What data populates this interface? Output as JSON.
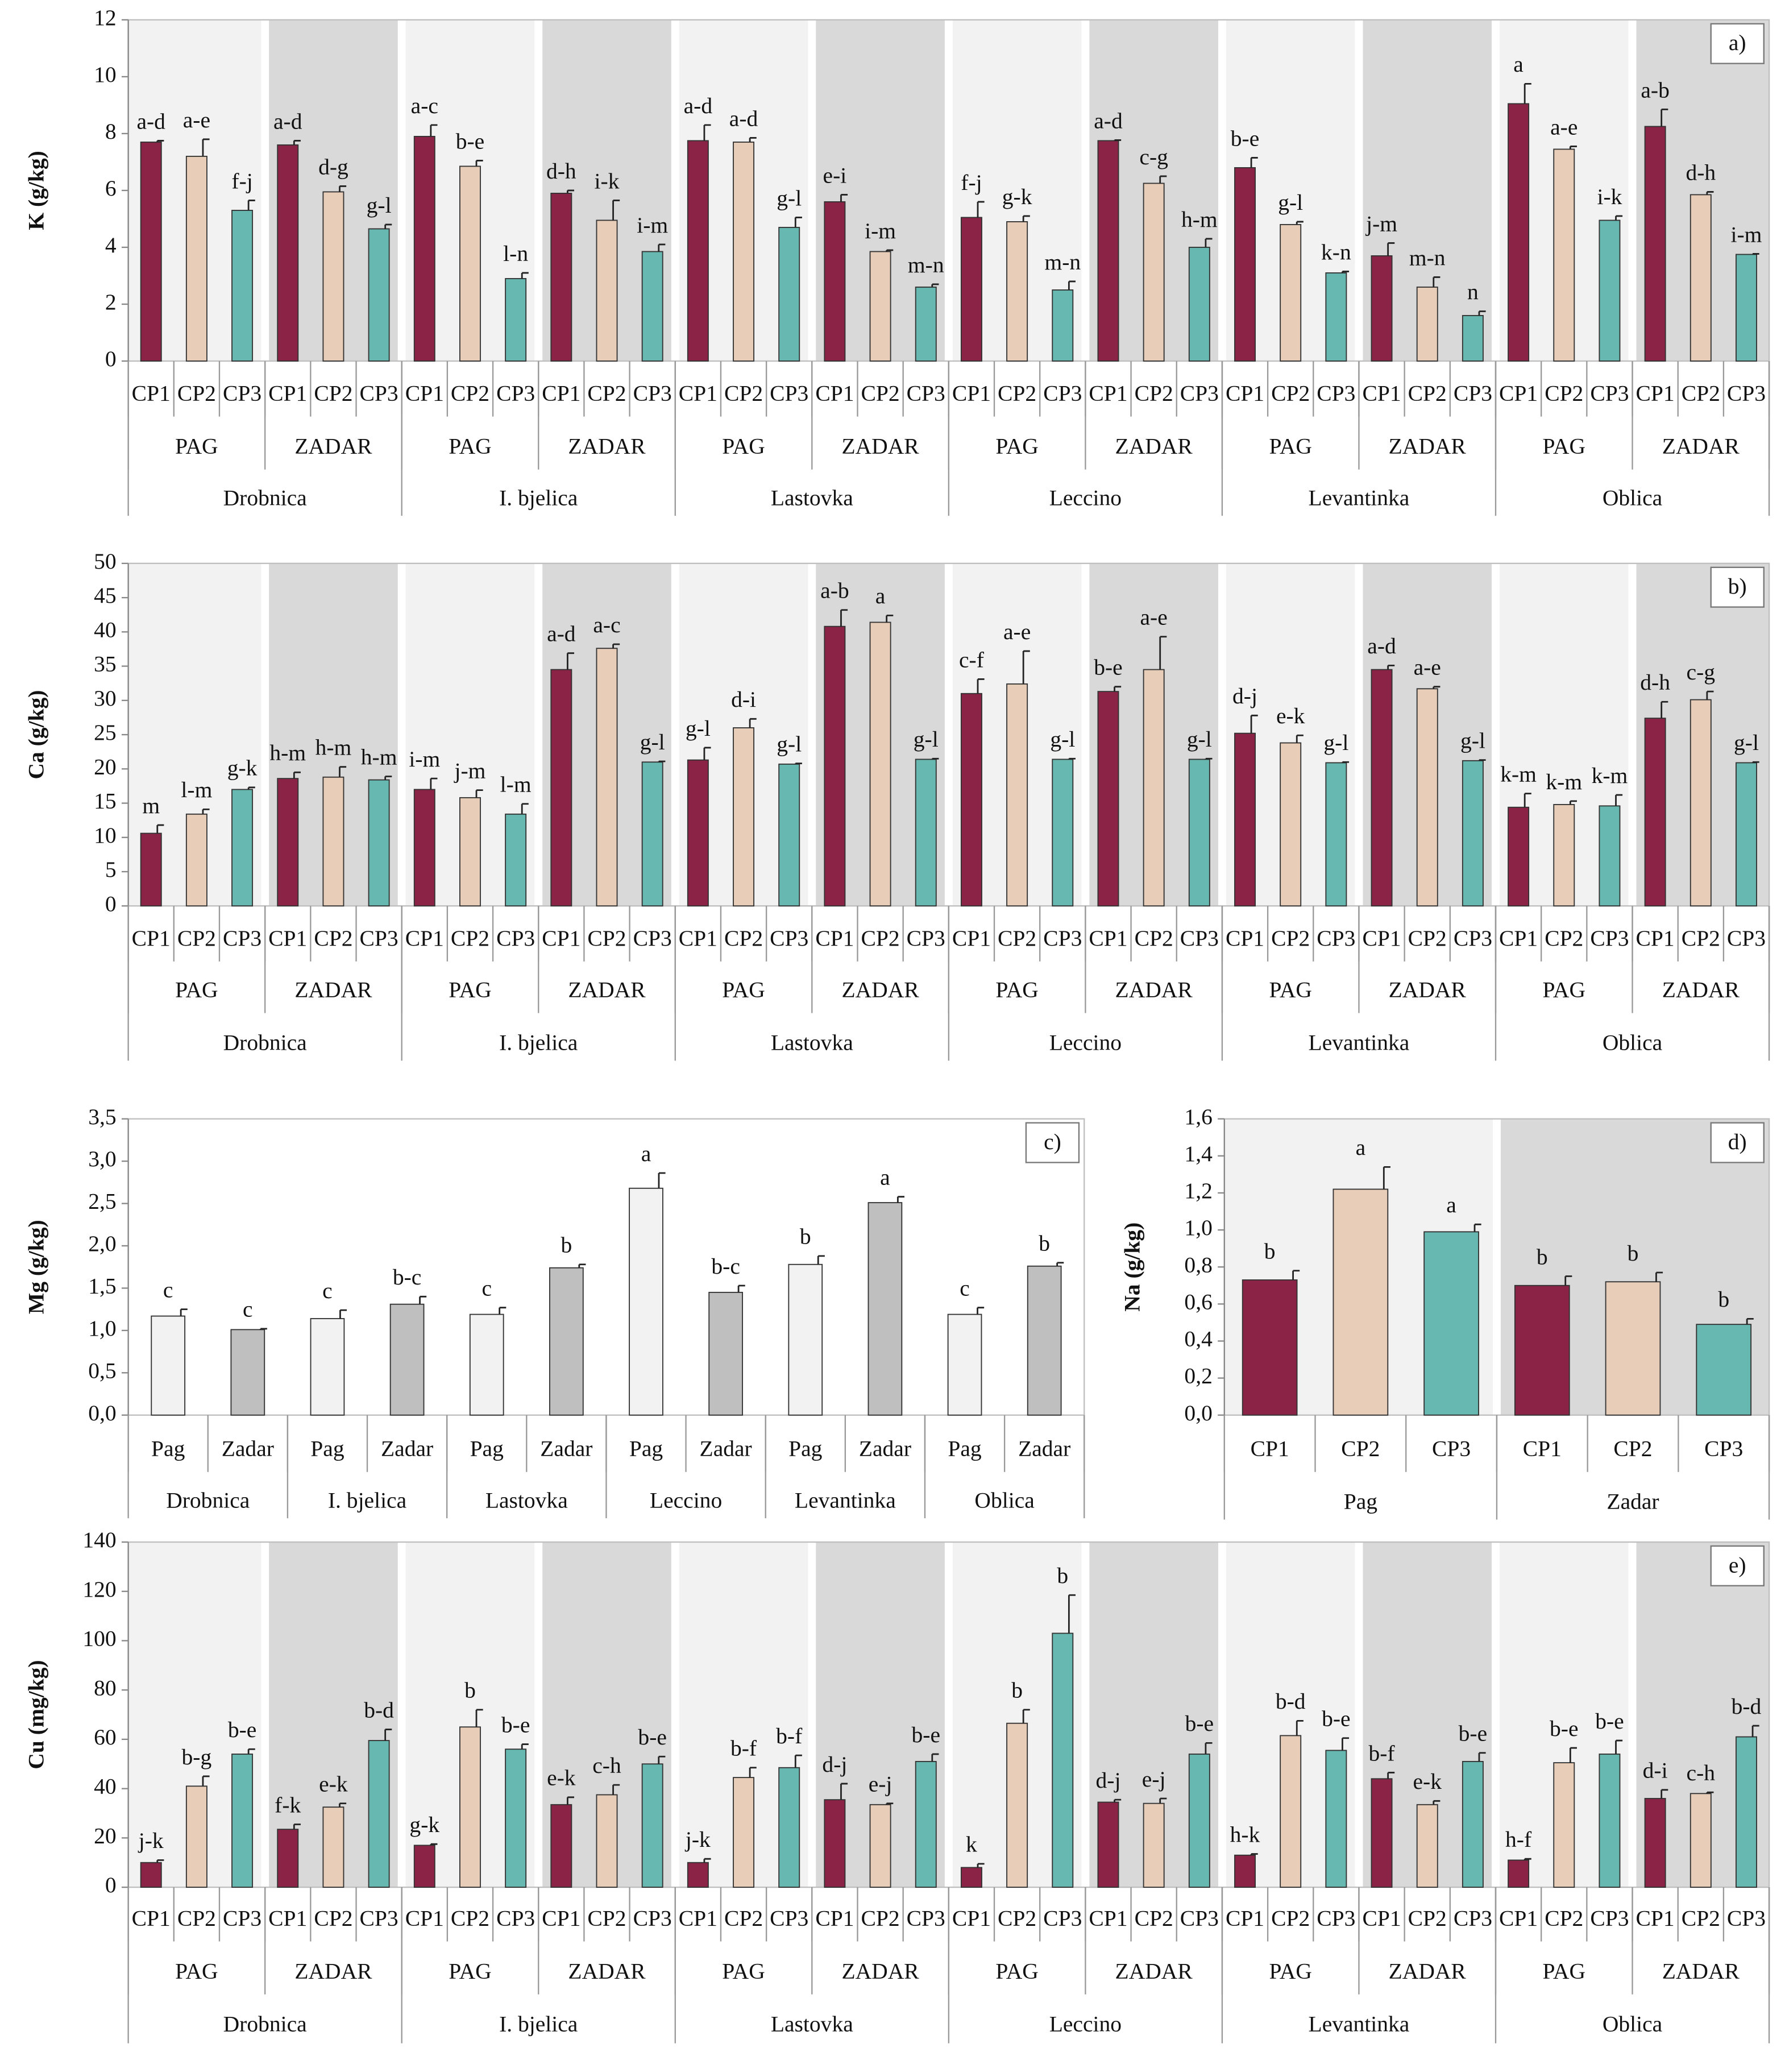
{
  "chart_data": [
    {
      "type": "bar",
      "label": "a)",
      "ylabel": "K (g/kg)",
      "ylim": [
        0,
        12
      ],
      "yticks": [
        0,
        2,
        4,
        6,
        8,
        10,
        12
      ],
      "colors": [
        "#8b2346",
        "#e8cdb8",
        "#66b8b0"
      ],
      "band_colors": [
        "#f2f2f2",
        "#d9d9d9"
      ],
      "categories": [
        "CP1",
        "CP2",
        "CP3",
        "CP1",
        "CP2",
        "CP3",
        "CP1",
        "CP2",
        "CP3",
        "CP1",
        "CP2",
        "CP3",
        "CP1",
        "CP2",
        "CP3",
        "CP1",
        "CP2",
        "CP3",
        "CP1",
        "CP2",
        "CP3",
        "CP1",
        "CP2",
        "CP3",
        "CP1",
        "CP2",
        "CP3",
        "CP1",
        "CP2",
        "CP3",
        "CP1",
        "CP2",
        "CP3",
        "CP1",
        "CP2",
        "CP3"
      ],
      "groups": [
        "PAG",
        "ZADAR",
        "PAG",
        "ZADAR",
        "PAG",
        "ZADAR",
        "PAG",
        "ZADAR",
        "PAG",
        "ZADAR",
        "PAG",
        "ZADAR"
      ],
      "supergroups": [
        "Drobnica",
        "I. bjelica",
        "Lastovka",
        "Leccino",
        "Levantinka",
        "Oblica"
      ],
      "values": [
        7.7,
        7.2,
        5.3,
        7.6,
        5.95,
        4.65,
        7.9,
        6.85,
        2.9,
        5.9,
        4.95,
        3.85,
        7.75,
        7.7,
        4.7,
        5.6,
        3.85,
        2.6,
        5.05,
        4.9,
        2.5,
        7.75,
        6.25,
        4.0,
        6.8,
        4.8,
        3.1,
        3.7,
        2.6,
        1.6,
        9.05,
        7.45,
        4.95,
        8.25,
        5.85,
        3.75
      ],
      "errors": [
        0.05,
        0.6,
        0.35,
        0.15,
        0.2,
        0.15,
        0.4,
        0.2,
        0.2,
        0.1,
        0.7,
        0.25,
        0.55,
        0.15,
        0.35,
        0.25,
        0.05,
        0.1,
        0.55,
        0.2,
        0.3,
        0.02,
        0.25,
        0.3,
        0.35,
        0.1,
        0.05,
        0.45,
        0.35,
        0.15,
        0.7,
        0.1,
        0.15,
        0.6,
        0.1,
        0.02
      ],
      "annotations": [
        "a-d",
        "a-e",
        "f-j",
        "a-d",
        "d-g",
        "g-l",
        "a-c",
        "b-e",
        "l-n",
        "d-h",
        "i-k",
        "i-m",
        "a-d",
        "a-d",
        "g-l",
        "e-i",
        "i-m",
        "m-n",
        "f-j",
        "g-k",
        "m-n",
        "a-d",
        "c-g",
        "h-m",
        "b-e",
        "g-l",
        "k-n",
        "j-m",
        "m-n",
        "n",
        "a",
        "a-e",
        "i-k",
        "a-b",
        "d-h",
        "i-m"
      ]
    },
    {
      "type": "bar",
      "label": "b)",
      "ylabel": "Ca (g/kg)",
      "ylim": [
        0,
        50
      ],
      "yticks": [
        0,
        5,
        10,
        15,
        20,
        25,
        30,
        35,
        40,
        45,
        50
      ],
      "colors": [
        "#8b2346",
        "#e8cdb8",
        "#66b8b0"
      ],
      "band_colors": [
        "#f2f2f2",
        "#d9d9d9"
      ],
      "categories": [
        "CP1",
        "CP2",
        "CP3",
        "CP1",
        "CP2",
        "CP3",
        "CP1",
        "CP2",
        "CP3",
        "CP1",
        "CP2",
        "CP3",
        "CP1",
        "CP2",
        "CP3",
        "CP1",
        "CP2",
        "CP3",
        "CP1",
        "CP2",
        "CP3",
        "CP1",
        "CP2",
        "CP3",
        "CP1",
        "CP2",
        "CP3",
        "CP1",
        "CP2",
        "CP3",
        "CP1",
        "CP2",
        "CP3",
        "CP1",
        "CP2",
        "CP3"
      ],
      "groups": [
        "PAG",
        "ZADAR",
        "PAG",
        "ZADAR",
        "PAG",
        "ZADAR",
        "PAG",
        "ZADAR",
        "PAG",
        "ZADAR",
        "PAG",
        "ZADAR"
      ],
      "supergroups": [
        "Drobnica",
        "I. bjelica",
        "Lastovka",
        "Leccino",
        "Levantinka",
        "Oblica"
      ],
      "values": [
        10.6,
        13.4,
        17.0,
        18.6,
        18.8,
        18.4,
        17.0,
        15.8,
        13.4,
        34.5,
        37.6,
        21.0,
        21.3,
        26.0,
        20.7,
        40.8,
        41.4,
        21.4,
        31.0,
        32.4,
        21.4,
        31.3,
        34.5,
        21.4,
        25.2,
        23.8,
        20.9,
        34.5,
        31.7,
        21.2,
        14.4,
        14.8,
        14.6,
        27.4,
        30.1,
        20.9
      ],
      "errors": [
        1.2,
        0.7,
        0.3,
        0.9,
        1.5,
        0.5,
        1.6,
        1.1,
        1.5,
        2.4,
        0.6,
        0.1,
        1.8,
        1.3,
        0.1,
        2.4,
        1.0,
        0.1,
        2.1,
        4.8,
        0.1,
        0.7,
        4.8,
        0.1,
        2.6,
        1.1,
        0.1,
        0.6,
        0.3,
        0.1,
        2.0,
        0.5,
        1.6,
        2.4,
        1.2,
        0.1
      ],
      "annotations": [
        "m",
        "l-m",
        "g-k",
        "h-m",
        "h-m",
        "h-m",
        "i-m",
        "j-m",
        "l-m",
        "a-d",
        "a-c",
        "g-l",
        "g-l",
        "d-i",
        "g-l",
        "a-b",
        "a",
        "g-l",
        "c-f",
        "a-e",
        "g-l",
        "b-e",
        "a-e",
        "g-l",
        "d-j",
        "e-k",
        "g-l",
        "a-d",
        "a-e",
        "g-l",
        "k-m",
        "k-m",
        "k-m",
        "d-h",
        "c-g",
        "g-l"
      ]
    },
    {
      "type": "bar",
      "label": "c)",
      "ylabel": "Mg (g/kg)",
      "ylim": [
        0,
        3.5
      ],
      "yticks": [
        {
          "value": 0,
          "label": "0,0"
        },
        {
          "value": 0.5,
          "label": "0,5"
        },
        {
          "value": 1,
          "label": "1,0"
        },
        {
          "value": 1.5,
          "label": "1,5"
        },
        {
          "value": 2,
          "label": "2,0"
        },
        {
          "value": 2.5,
          "label": "2,5"
        },
        {
          "value": 3,
          "label": "3,0"
        },
        {
          "value": 3.5,
          "label": "3,5"
        }
      ],
      "colors": [
        "#f2f2f2",
        "#bfbfbf"
      ],
      "categories": [
        "Pag",
        "Zadar",
        "Pag",
        "Zadar",
        "Pag",
        "Zadar",
        "Pag",
        "Zadar",
        "Pag",
        "Zadar",
        "Pag",
        "Zadar"
      ],
      "groups": [
        "Drobnica",
        "I. bjelica",
        "Lastovka",
        "Leccino",
        "Levantinka",
        "Oblica"
      ],
      "values": [
        1.17,
        1.01,
        1.14,
        1.31,
        1.19,
        1.74,
        2.68,
        1.45,
        1.78,
        2.51,
        1.19,
        1.76
      ],
      "errors": [
        0.08,
        0.01,
        0.1,
        0.09,
        0.08,
        0.04,
        0.18,
        0.08,
        0.1,
        0.07,
        0.08,
        0.04
      ],
      "annotations": [
        "c",
        "c",
        "c",
        "b-c",
        "c",
        "b",
        "a",
        "b-c",
        "b",
        "a",
        "c",
        "b"
      ]
    },
    {
      "type": "bar",
      "label": "d)",
      "ylabel": "Na (g/kg)",
      "ylim": [
        0,
        1.6
      ],
      "yticks": [
        {
          "value": 0,
          "label": "0,0"
        },
        {
          "value": 0.2,
          "label": "0,2"
        },
        {
          "value": 0.4,
          "label": "0,4"
        },
        {
          "value": 0.6,
          "label": "0,6"
        },
        {
          "value": 0.8,
          "label": "0,8"
        },
        {
          "value": 1,
          "label": "1,0"
        },
        {
          "value": 1.2,
          "label": "1,2"
        },
        {
          "value": 1.4,
          "label": "1,4"
        },
        {
          "value": 1.6,
          "label": "1,6"
        }
      ],
      "colors": [
        "#8b2346",
        "#e8cdb8",
        "#66b8b0"
      ],
      "band_colors": [
        "#f2f2f2",
        "#d9d9d9"
      ],
      "categories": [
        "CP1",
        "CP2",
        "CP3",
        "CP1",
        "CP2",
        "CP3"
      ],
      "groups": [
        "Pag",
        "Zadar"
      ],
      "values": [
        0.73,
        1.22,
        0.99,
        0.7,
        0.72,
        0.49
      ],
      "errors": [
        0.05,
        0.12,
        0.04,
        0.05,
        0.05,
        0.03
      ],
      "annotations": [
        "b",
        "a",
        "a",
        "b",
        "b",
        "b"
      ]
    },
    {
      "type": "bar",
      "label": "e)",
      "ylabel": "Cu (mg/kg)",
      "ylim": [
        0,
        140
      ],
      "yticks": [
        0,
        20,
        40,
        60,
        80,
        100,
        120,
        140
      ],
      "colors": [
        "#8b2346",
        "#e8cdb8",
        "#66b8b0"
      ],
      "band_colors": [
        "#f2f2f2",
        "#d9d9d9"
      ],
      "categories": [
        "CP1",
        "CP2",
        "CP3",
        "CP1",
        "CP2",
        "CP3",
        "CP1",
        "CP2",
        "CP3",
        "CP1",
        "CP2",
        "CP3",
        "CP1",
        "CP2",
        "CP3",
        "CP1",
        "CP2",
        "CP3",
        "CP1",
        "CP2",
        "CP3",
        "CP1",
        "CP2",
        "CP3",
        "CP1",
        "CP2",
        "CP3",
        "CP1",
        "CP2",
        "CP3",
        "CP1",
        "CP2",
        "CP3",
        "CP1",
        "CP2",
        "CP3"
      ],
      "groups": [
        "PAG",
        "ZADAR",
        "PAG",
        "ZADAR",
        "PAG",
        "ZADAR",
        "PAG",
        "ZADAR",
        "PAG",
        "ZADAR",
        "PAG",
        "ZADAR"
      ],
      "supergroups": [
        "Drobnica",
        "I. bjelica",
        "Lastovka",
        "Leccino",
        "Levantinka",
        "Oblica"
      ],
      "values": [
        10,
        41,
        54,
        23.5,
        32.5,
        59.5,
        17,
        65,
        56,
        33.5,
        37.5,
        50,
        10,
        44.5,
        48.5,
        35.5,
        33.5,
        51,
        8,
        66.5,
        103,
        34.5,
        34,
        54,
        13,
        61.5,
        55.5,
        44,
        33.5,
        51,
        11,
        50.5,
        54,
        36,
        38,
        61
      ],
      "errors": [
        1,
        4,
        2,
        2,
        1.5,
        4.5,
        0.5,
        7,
        2,
        3,
        4,
        3,
        1.5,
        4,
        5,
        6.5,
        0.5,
        3,
        1.5,
        5.5,
        15.5,
        1,
        2,
        4.5,
        0.5,
        6,
        5,
        2.5,
        1.5,
        3.5,
        0.5,
        6,
        5.5,
        3.5,
        0.5,
        4.5
      ],
      "annotations": [
        "j-k",
        "b-g",
        "b-e",
        "f-k",
        "e-k",
        "b-d",
        "g-k",
        "b",
        "b-e",
        "e-k",
        "c-h",
        "b-e",
        "j-k",
        "b-f",
        "b-f",
        "d-j",
        "e-j",
        "b-e",
        "k",
        "b",
        "b",
        "d-j",
        "e-j",
        "b-e",
        "h-k",
        "b-d",
        "b-e",
        "b-f",
        "e-k",
        "b-e",
        "h-f",
        "b-e",
        "b-e",
        "d-i",
        "c-h",
        "b-d"
      ]
    }
  ]
}
